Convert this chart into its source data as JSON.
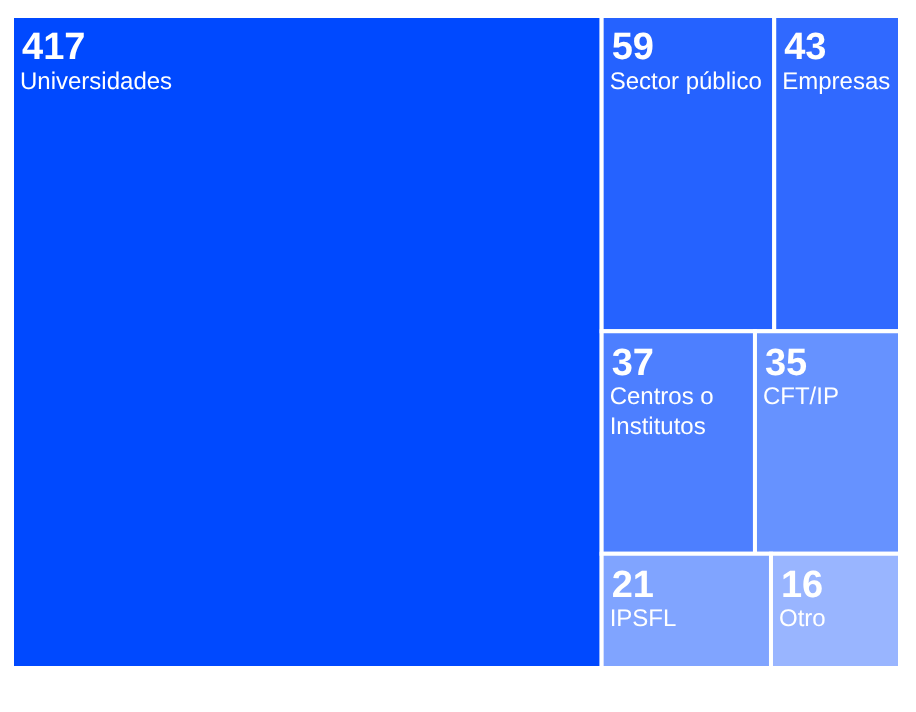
{
  "chart_data": {
    "type": "other",
    "categories": [
      "Universidades",
      "Sector público",
      "Empresas",
      "Centros o Institutos",
      "CFT/IP",
      "IPSFL",
      "Otro"
    ],
    "values": [
      417,
      59,
      43,
      37,
      35,
      21,
      16
    ],
    "colors": [
      "#0049ff",
      "#2562ff",
      "#3069ff",
      "#4d7fff",
      "#6692ff",
      "#80a4ff",
      "#99b5ff"
    ],
    "data_labels": true
  }
}
